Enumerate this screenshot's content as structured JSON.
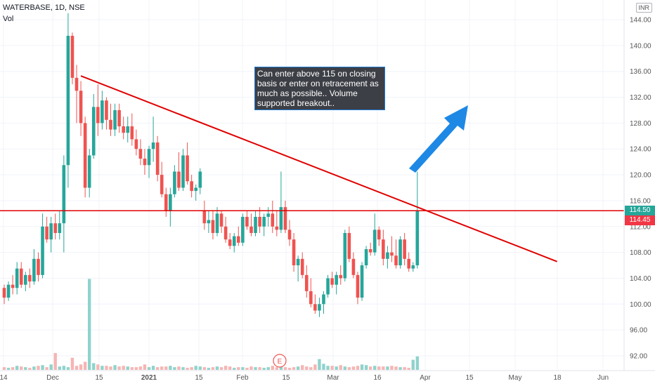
{
  "header": {
    "title": "WATERBASE, 1D, NSE",
    "volume_label": "Vol",
    "currency": "INR"
  },
  "annotation": {
    "text": "Can enter above 115 on closing basis or enter on retracement as much as possible.. Volume supported breakout.."
  },
  "earnings_marker": "E",
  "price_labels": {
    "last": "114.50",
    "line": "114.45"
  },
  "colors": {
    "up": "#26a69a",
    "down": "#ef5350",
    "up_vol": "#8fd3cc",
    "down_vol": "#f5b5b3",
    "trendline": "#e00000",
    "arrow": "#1e88e5",
    "label_green": "#26a69a",
    "label_red": "#f23645"
  },
  "chart_data": {
    "type": "candlestick",
    "y_axis": {
      "ylim": [
        88,
        146
      ],
      "ticks": [
        "144.00",
        "140.00",
        "136.00",
        "132.00",
        "128.00",
        "124.00",
        "120.00",
        "116.00",
        "112.00",
        "108.00",
        "104.00",
        "100.00",
        "96.00",
        "92.00"
      ]
    },
    "x_axis": {
      "tick_labels": [
        "14",
        "Dec",
        "15",
        "2021",
        "15",
        "Feb",
        "15",
        "Mar",
        "16",
        "Apr",
        "15",
        "May",
        "18",
        "Jun"
      ]
    },
    "horizontal_line": 114.45,
    "trendline": {
      "from_date_index": 18,
      "from_price": 135.3,
      "to_date_index": 110,
      "to_price": 106.8
    },
    "candles": [
      [
        102.5,
        103.0,
        100.0,
        101.0
      ],
      [
        101.0,
        103.5,
        100.5,
        103.0
      ],
      [
        103.0,
        104.5,
        101.5,
        102.5
      ],
      [
        102.5,
        106.5,
        101.5,
        105.5
      ],
      [
        105.5,
        106.5,
        102.5,
        103.0
      ],
      [
        103.0,
        105.0,
        102.0,
        104.5
      ],
      [
        104.5,
        105.5,
        102.5,
        103.5
      ],
      [
        103.5,
        108.5,
        103.0,
        107.0
      ],
      [
        107.0,
        108.0,
        103.5,
        104.5
      ],
      [
        104.5,
        114.0,
        104.0,
        112.0
      ],
      [
        112.0,
        113.5,
        109.5,
        110.0
      ],
      [
        110.0,
        113.5,
        108.0,
        112.5
      ],
      [
        112.5,
        114.0,
        110.0,
        111.0
      ],
      [
        111.0,
        114.5,
        110.0,
        112.5
      ],
      [
        112.5,
        123.0,
        108.0,
        121.5
      ],
      [
        121.5,
        145.0,
        118.0,
        141.5
      ],
      [
        141.5,
        142.0,
        134.0,
        135.0
      ],
      [
        135.0,
        137.0,
        128.0,
        133.0
      ],
      [
        133.0,
        134.5,
        126.0,
        128.0
      ],
      [
        128.0,
        129.0,
        116.5,
        118.0
      ],
      [
        118.0,
        124.0,
        116.5,
        123.0
      ],
      [
        123.0,
        132.5,
        122.5,
        130.5
      ],
      [
        130.5,
        134.0,
        126.0,
        128.0
      ],
      [
        128.0,
        133.0,
        127.0,
        131.5
      ],
      [
        131.5,
        132.0,
        127.0,
        128.5
      ],
      [
        128.5,
        131.0,
        126.0,
        127.0
      ],
      [
        127.0,
        131.0,
        126.0,
        130.0
      ],
      [
        130.0,
        131.0,
        126.5,
        127.5
      ],
      [
        127.5,
        129.0,
        125.5,
        126.5
      ],
      [
        126.5,
        129.0,
        125.0,
        127.5
      ],
      [
        127.5,
        129.5,
        124.5,
        125.5
      ],
      [
        125.5,
        127.0,
        123.0,
        124.0
      ],
      [
        124.0,
        125.5,
        121.5,
        122.5
      ],
      [
        122.5,
        124.0,
        120.0,
        121.5
      ],
      [
        121.5,
        124.5,
        119.5,
        124.0
      ],
      [
        124.0,
        129.0,
        122.0,
        125.0
      ],
      [
        125.0,
        126.0,
        119.0,
        120.0
      ],
      [
        120.0,
        122.0,
        116.5,
        117.0
      ],
      [
        117.0,
        118.0,
        113.5,
        114.5
      ],
      [
        114.5,
        118.0,
        112.0,
        117.0
      ],
      [
        117.0,
        121.5,
        116.5,
        120.5
      ],
      [
        120.5,
        123.5,
        117.5,
        118.0
      ],
      [
        118.0,
        124.0,
        117.5,
        123.0
      ],
      [
        123.0,
        125.0,
        118.5,
        119.0
      ],
      [
        119.0,
        120.0,
        116.5,
        117.5
      ],
      [
        117.5,
        118.5,
        116.0,
        118.0
      ],
      [
        118.0,
        121.0,
        117.0,
        120.5
      ],
      [
        114.5,
        116.0,
        111.5,
        112.5
      ],
      [
        112.5,
        114.5,
        111.0,
        113.0
      ],
      [
        113.0,
        114.5,
        110.0,
        111.0
      ],
      [
        111.0,
        115.0,
        110.5,
        114.0
      ],
      [
        114.0,
        114.5,
        111.0,
        112.0
      ],
      [
        112.0,
        113.5,
        109.5,
        110.0
      ],
      [
        110.0,
        111.0,
        108.5,
        109.0
      ],
      [
        109.0,
        111.0,
        108.0,
        110.5
      ],
      [
        110.5,
        112.0,
        109.0,
        109.5
      ],
      [
        109.5,
        114.0,
        109.0,
        113.5
      ],
      [
        113.5,
        114.5,
        111.5,
        112.0
      ],
      [
        112.0,
        114.0,
        110.5,
        111.0
      ],
      [
        111.0,
        114.5,
        110.5,
        113.5
      ],
      [
        113.5,
        115.0,
        111.0,
        112.0
      ],
      [
        112.0,
        114.0,
        110.5,
        113.5
      ],
      [
        113.5,
        115.0,
        112.0,
        114.0
      ],
      [
        114.0,
        116.0,
        111.0,
        112.0
      ],
      [
        112.0,
        114.5,
        110.5,
        111.5
      ],
      [
        111.5,
        120.5,
        111.0,
        115.0
      ],
      [
        115.0,
        116.0,
        111.0,
        111.5
      ],
      [
        111.5,
        113.0,
        109.0,
        110.0
      ],
      [
        110.0,
        111.0,
        105.0,
        106.0
      ],
      [
        106.0,
        107.5,
        103.5,
        107.0
      ],
      [
        107.0,
        108.0,
        104.0,
        104.5
      ],
      [
        104.5,
        106.0,
        101.0,
        102.0
      ],
      [
        102.0,
        104.0,
        99.5,
        100.0
      ],
      [
        100.0,
        101.5,
        98.5,
        99.0
      ],
      [
        99.0,
        101.0,
        98.0,
        100.0
      ],
      [
        100.0,
        102.0,
        98.5,
        101.5
      ],
      [
        101.5,
        104.5,
        101.0,
        104.0
      ],
      [
        104.0,
        105.0,
        102.5,
        103.0
      ],
      [
        103.0,
        105.0,
        101.5,
        104.5
      ],
      [
        104.5,
        106.0,
        103.0,
        104.0
      ],
      [
        104.0,
        111.5,
        103.5,
        111.0
      ],
      [
        111.0,
        112.0,
        106.5,
        107.0
      ],
      [
        107.0,
        108.0,
        104.0,
        104.5
      ],
      [
        104.5,
        105.0,
        100.0,
        101.0
      ],
      [
        101.0,
        106.5,
        100.5,
        106.0
      ],
      [
        106.0,
        109.0,
        105.5,
        108.5
      ],
      [
        108.5,
        109.5,
        107.5,
        108.0
      ],
      [
        108.0,
        114.0,
        107.5,
        111.5
      ],
      [
        111.5,
        112.0,
        109.0,
        110.0
      ],
      [
        110.0,
        111.5,
        106.0,
        107.0
      ],
      [
        107.0,
        109.0,
        105.5,
        108.0
      ],
      [
        108.0,
        110.5,
        106.5,
        107.5
      ],
      [
        107.5,
        110.0,
        105.5,
        106.0
      ],
      [
        106.0,
        110.5,
        105.5,
        110.0
      ],
      [
        110.0,
        111.0,
        106.0,
        107.0
      ],
      [
        107.0,
        108.0,
        105.0,
        105.5
      ],
      [
        105.5,
        106.5,
        105.0,
        106.0
      ],
      [
        106.0,
        120.5,
        105.5,
        114.5
      ]
    ],
    "volumes": [
      0.4,
      0.3,
      0.4,
      0.6,
      0.5,
      0.4,
      0.3,
      0.5,
      0.6,
      0.7,
      0.4,
      0.8,
      2.5,
      0.5,
      0.6,
      0.4,
      1.8,
      0.6,
      0.8,
      1.2,
      13.5,
      1.0,
      0.8,
      0.6,
      0.6,
      0.5,
      0.7,
      0.5,
      0.6,
      0.5,
      0.4,
      0.4,
      0.5,
      0.8,
      0.4,
      0.6,
      0.4,
      0.5,
      0.5,
      0.6,
      0.4,
      0.5,
      0.4,
      0.3,
      0.4,
      0.6,
      0.5,
      0.4,
      0.3,
      0.4,
      0.5,
      0.4,
      0.6,
      0.5,
      0.3,
      0.4,
      0.4,
      0.3,
      0.5,
      0.4,
      0.4,
      0.3,
      0.4,
      0.6,
      0.4,
      0.5,
      0.4,
      0.3,
      0.4,
      0.5,
      0.7,
      0.5,
      0.4,
      0.8,
      1.6,
      0.9,
      0.6,
      0.6,
      0.5,
      0.7,
      0.5,
      0.4,
      0.5,
      0.6,
      0.8,
      0.7,
      0.5,
      0.6,
      0.5,
      0.5,
      0.5,
      0.6,
      0.5,
      0.4,
      0.4,
      0.3,
      1.5,
      2.0
    ]
  }
}
